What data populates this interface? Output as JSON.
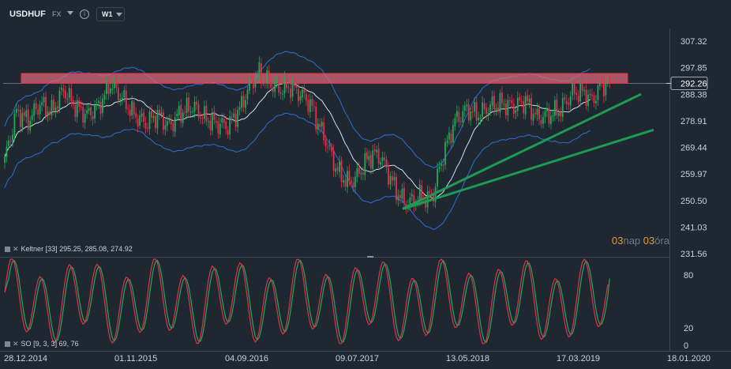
{
  "header": {
    "symbol": "USDHUF",
    "market": "FX",
    "timeframe": "W1"
  },
  "price_axis": {
    "ticks": [
      "307.32",
      "297.85",
      "288.38",
      "278.91",
      "269.44",
      "259.97",
      "250.50",
      "241.03",
      "231.56"
    ],
    "current_price": "292.26"
  },
  "osc_axis": {
    "ticks": [
      "80",
      "20",
      "0"
    ]
  },
  "date_axis": [
    "28.12.2014",
    "01.11.2015",
    "04.09.2016",
    "09.07.2017",
    "13.05.2018",
    "17.03.2019",
    "18.01.2020"
  ],
  "indicators": {
    "keltner_label": "Keltner",
    "keltner_params": "[33]",
    "keltner_values": "295.25,  285.08,  274.92",
    "so_label": "SO",
    "so_params": "[9, 3, 3]",
    "so_values": "69,  76"
  },
  "countdown": {
    "n1": "03",
    "u1": "nap",
    "n2": "03",
    "u2": "óra"
  },
  "colors": {
    "background": "#1f2731",
    "bull": "#26a65b",
    "bear": "#e0314b",
    "keltner_band": "#2a6fd6",
    "keltner_mid": "#cfe3ef",
    "trendline": "#1f9a55",
    "resistance_fill": "#e06a78",
    "so_k": "#e0314b",
    "so_d": "#26a65b"
  },
  "chart_data": {
    "type": "candlestick",
    "timeframe": "W1",
    "ylim": [
      231.56,
      307.32
    ],
    "y_ticks": [
      231.56,
      241.03,
      250.5,
      259.97,
      269.44,
      278.91,
      288.38,
      297.85,
      307.32
    ],
    "x_ticks": [
      "28.12.2014",
      "01.11.2015",
      "04.09.2016",
      "09.07.2017",
      "13.05.2018",
      "17.03.2019",
      "18.01.2020"
    ],
    "close_anchors": [
      [
        0,
        265
      ],
      [
        6,
        282
      ],
      [
        12,
        279
      ],
      [
        18,
        285
      ],
      [
        24,
        282
      ],
      [
        30,
        290
      ],
      [
        36,
        284
      ],
      [
        42,
        281
      ],
      [
        48,
        284
      ],
      [
        54,
        292
      ],
      [
        60,
        287
      ],
      [
        66,
        281
      ],
      [
        72,
        278
      ],
      [
        78,
        281
      ],
      [
        84,
        277
      ],
      [
        90,
        282
      ],
      [
        96,
        284
      ],
      [
        102,
        280
      ],
      [
        108,
        278
      ],
      [
        114,
        277
      ],
      [
        120,
        283
      ],
      [
        126,
        293
      ],
      [
        130,
        296
      ],
      [
        134,
        293
      ],
      [
        140,
        290
      ],
      [
        146,
        291
      ],
      [
        152,
        288
      ],
      [
        156,
        285
      ],
      [
        160,
        278
      ],
      [
        164,
        272
      ],
      [
        168,
        264
      ],
      [
        172,
        259
      ],
      [
        176,
        257
      ],
      [
        180,
        259
      ],
      [
        184,
        264
      ],
      [
        188,
        267
      ],
      [
        192,
        266
      ],
      [
        196,
        260
      ],
      [
        200,
        254
      ],
      [
        204,
        250
      ],
      [
        208,
        250
      ],
      [
        212,
        252
      ],
      [
        216,
        251
      ],
      [
        219,
        253
      ],
      [
        222,
        262
      ],
      [
        226,
        271
      ],
      [
        230,
        279
      ],
      [
        236,
        283
      ],
      [
        242,
        281
      ],
      [
        248,
        284
      ],
      [
        254,
        285
      ],
      [
        260,
        284
      ],
      [
        266,
        286
      ],
      [
        272,
        280
      ],
      [
        278,
        281
      ],
      [
        284,
        283
      ],
      [
        290,
        289
      ],
      [
        296,
        289
      ],
      [
        300,
        286
      ],
      [
        304,
        291
      ],
      [
        308,
        292.26
      ]
    ],
    "resistance_zone": [
      292.26,
      295.8
    ],
    "keltner": {
      "period": 33,
      "upper": 295.25,
      "middle": 285.08,
      "lower": 274.92
    },
    "trendlines": [
      {
        "from": [
          "2017-12",
          247.5
        ],
        "to": [
          "2019-09",
          288.4
        ]
      },
      {
        "from": [
          "2017-12",
          247.5
        ],
        "to": [
          "2019-09",
          275.7
        ]
      }
    ],
    "stochastic": {
      "params": [
        9,
        3,
        3
      ],
      "k": 69,
      "d": 76,
      "levels": [
        20,
        80
      ],
      "ylim": [
        0,
        100
      ]
    }
  }
}
